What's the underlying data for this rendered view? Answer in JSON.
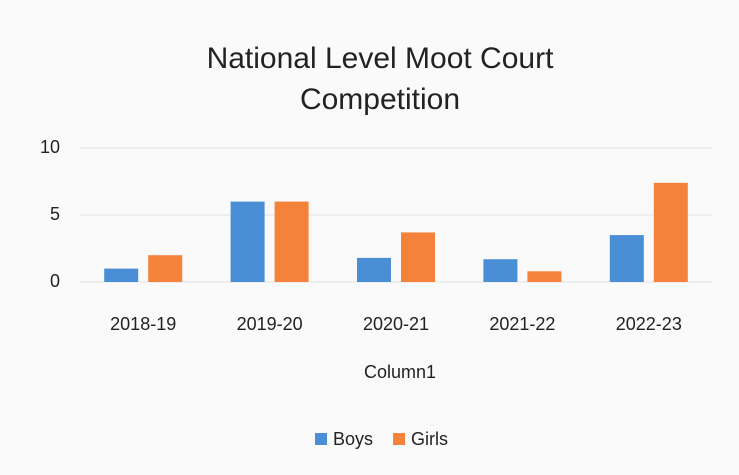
{
  "chart_data": {
    "type": "bar",
    "title": "National Level Moot Court Competition",
    "title_lines": [
      "National Level Moot Court",
      "Competition"
    ],
    "x_label": "Column1",
    "categories": [
      "2018-19",
      "2019-20",
      "2020-21",
      "2021-22",
      "2022-23"
    ],
    "series": [
      {
        "name": "Boys",
        "color": "#4a8fd6",
        "values": [
          1,
          6,
          1.8,
          1.7,
          3.5
        ]
      },
      {
        "name": "Girls",
        "color": "#f5823a",
        "values": [
          2,
          6,
          3.7,
          0.8,
          7.4
        ]
      }
    ],
    "ylim": [
      0,
      10
    ],
    "yticks": [
      0,
      5,
      10
    ],
    "grid": true,
    "legend": "bottom"
  }
}
